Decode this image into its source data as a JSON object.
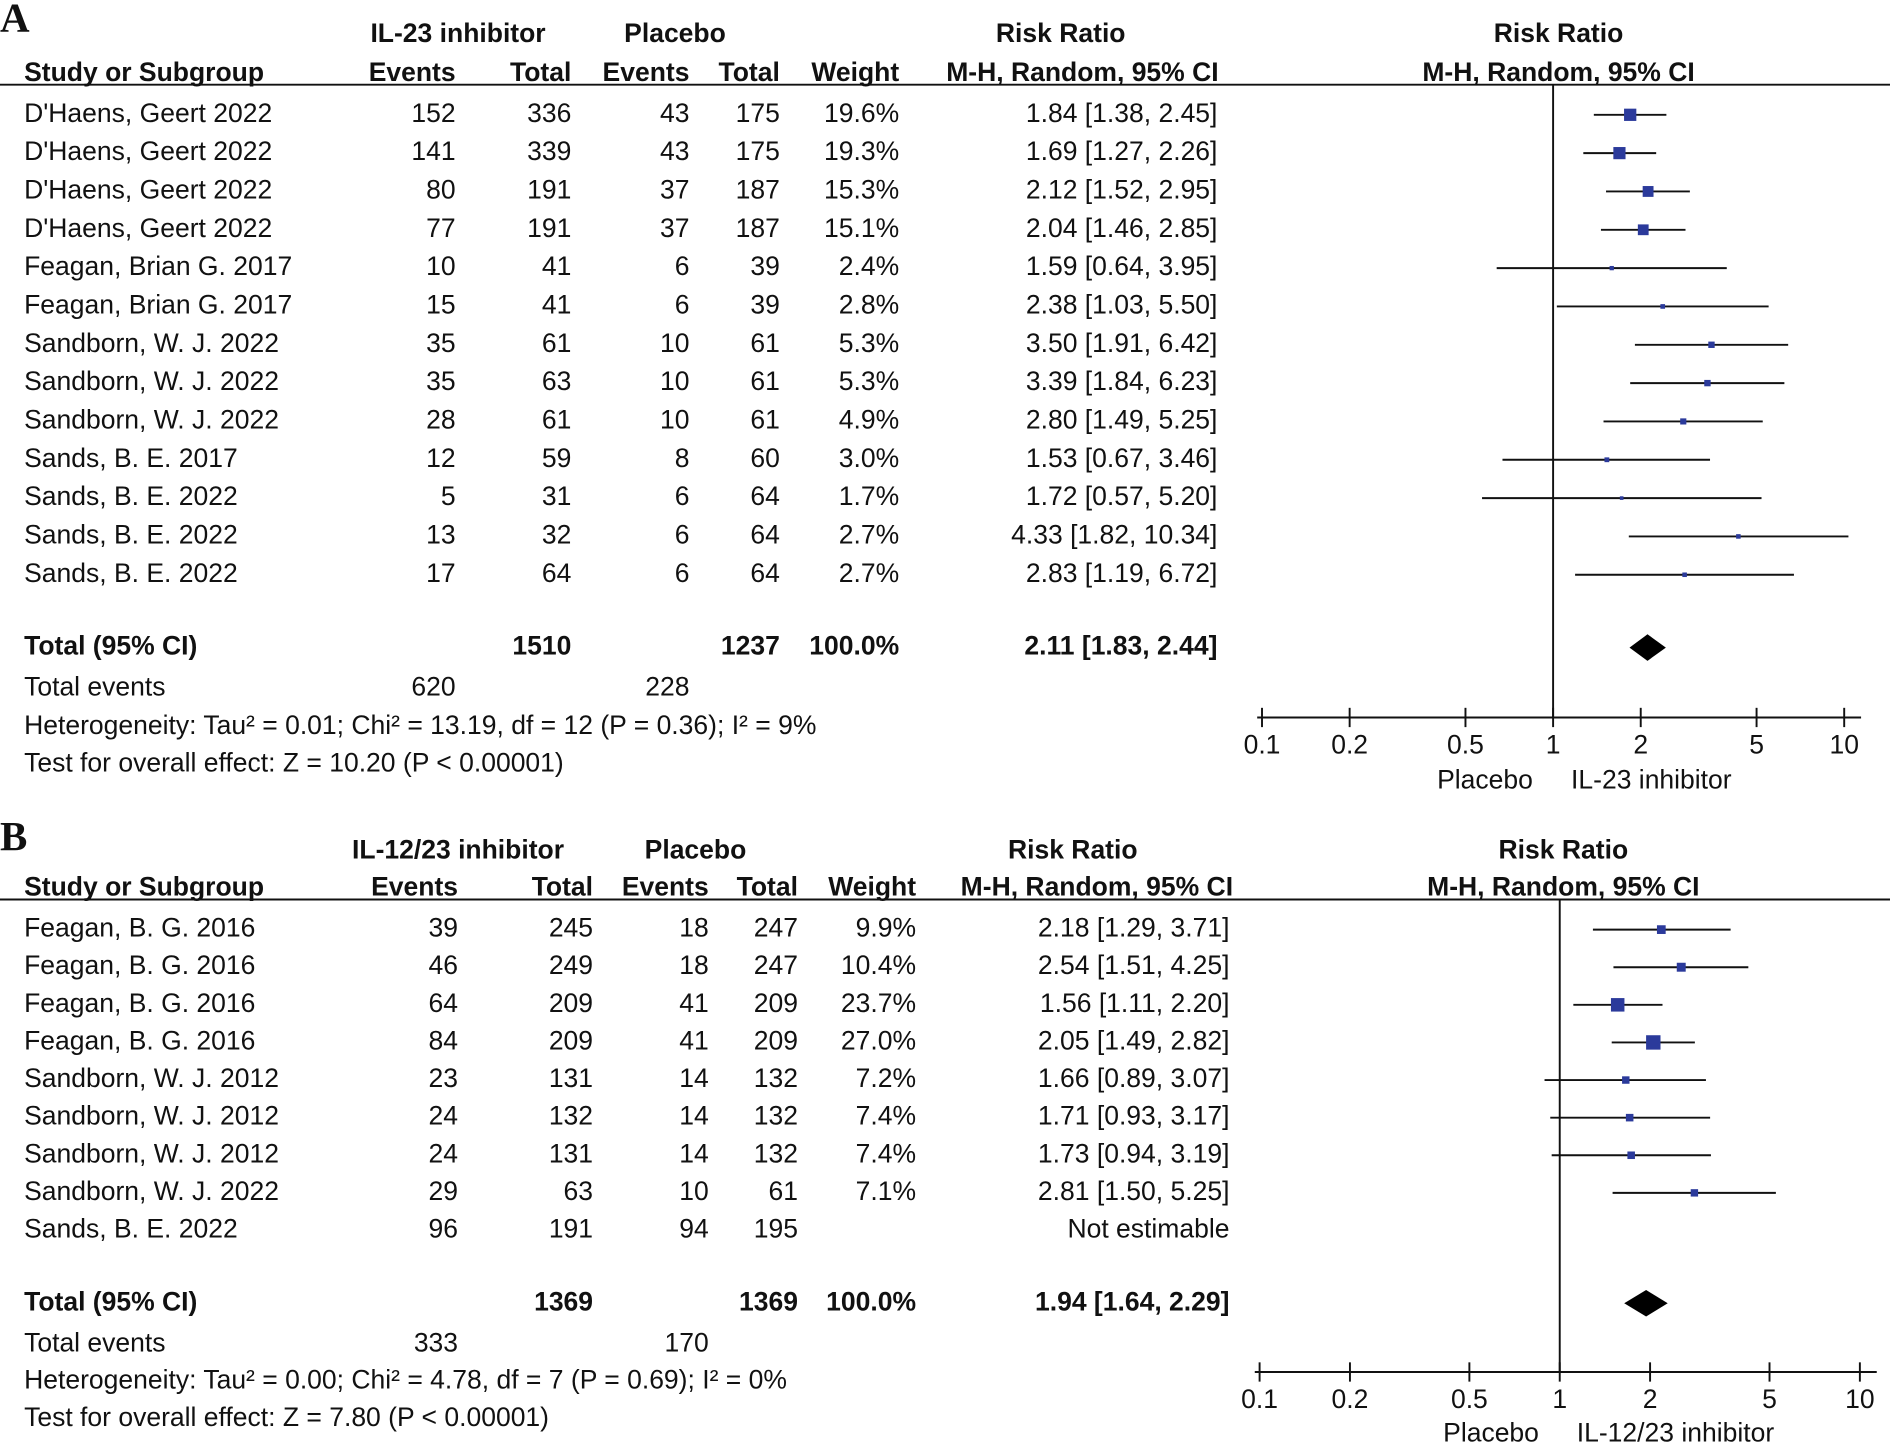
{
  "chart_data": [
    {
      "type": "forest",
      "panel_label": "A",
      "group1": "IL-23 inhibitor",
      "group2": "Placebo",
      "columns": [
        "Study or Subgroup",
        "Events",
        "Total",
        "Events",
        "Total",
        "Weight"
      ],
      "effect_header": "Risk Ratio",
      "effect_subheader": "M-H, Random, 95% CI",
      "plot_header": "Risk Ratio",
      "plot_subheader": "M-H, Random, 95% CI",
      "xscale": "log",
      "xlim": [
        0.1,
        10
      ],
      "xticks": [
        0.1,
        0.2,
        0.5,
        1,
        2,
        5,
        10
      ],
      "x_label_left": "Placebo",
      "x_label_right": "IL-23 inhibitor",
      "color": "#2b3a9b",
      "studies": [
        {
          "name": "D'Haens, Geert 2022",
          "events1": 152,
          "total1": 336,
          "events2": 43,
          "total2": 175,
          "weight": 19.6,
          "weight_label": "19.6%",
          "rr": 1.84,
          "ci_low": 1.38,
          "ci_high": 2.45,
          "rr_label": "1.84 [1.38, 2.45]"
        },
        {
          "name": "D'Haens, Geert 2022",
          "events1": 141,
          "total1": 339,
          "events2": 43,
          "total2": 175,
          "weight": 19.3,
          "weight_label": "19.3%",
          "rr": 1.69,
          "ci_low": 1.27,
          "ci_high": 2.26,
          "rr_label": "1.69 [1.27, 2.26]"
        },
        {
          "name": "D'Haens, Geert 2022",
          "events1": 80,
          "total1": 191,
          "events2": 37,
          "total2": 187,
          "weight": 15.3,
          "weight_label": "15.3%",
          "rr": 2.12,
          "ci_low": 1.52,
          "ci_high": 2.95,
          "rr_label": "2.12 [1.52, 2.95]"
        },
        {
          "name": "D'Haens, Geert 2022",
          "events1": 77,
          "total1": 191,
          "events2": 37,
          "total2": 187,
          "weight": 15.1,
          "weight_label": "15.1%",
          "rr": 2.04,
          "ci_low": 1.46,
          "ci_high": 2.85,
          "rr_label": "2.04 [1.46, 2.85]"
        },
        {
          "name": "Feagan, Brian G. 2017",
          "events1": 10,
          "total1": 41,
          "events2": 6,
          "total2": 39,
          "weight": 2.4,
          "weight_label": "2.4%",
          "rr": 1.59,
          "ci_low": 0.64,
          "ci_high": 3.95,
          "rr_label": "1.59 [0.64, 3.95]"
        },
        {
          "name": "Feagan, Brian G. 2017",
          "events1": 15,
          "total1": 41,
          "events2": 6,
          "total2": 39,
          "weight": 2.8,
          "weight_label": "2.8%",
          "rr": 2.38,
          "ci_low": 1.03,
          "ci_high": 5.5,
          "rr_label": "2.38 [1.03, 5.50]"
        },
        {
          "name": "Sandborn, W. J. 2022",
          "events1": 35,
          "total1": 61,
          "events2": 10,
          "total2": 61,
          "weight": 5.3,
          "weight_label": "5.3%",
          "rr": 3.5,
          "ci_low": 1.91,
          "ci_high": 6.42,
          "rr_label": "3.50 [1.91, 6.42]"
        },
        {
          "name": "Sandborn, W. J. 2022",
          "events1": 35,
          "total1": 63,
          "events2": 10,
          "total2": 61,
          "weight": 5.3,
          "weight_label": "5.3%",
          "rr": 3.39,
          "ci_low": 1.84,
          "ci_high": 6.23,
          "rr_label": "3.39 [1.84, 6.23]"
        },
        {
          "name": "Sandborn, W. J. 2022",
          "events1": 28,
          "total1": 61,
          "events2": 10,
          "total2": 61,
          "weight": 4.9,
          "weight_label": "4.9%",
          "rr": 2.8,
          "ci_low": 1.49,
          "ci_high": 5.25,
          "rr_label": "2.80 [1.49, 5.25]"
        },
        {
          "name": "Sands, B. E. 2017",
          "events1": 12,
          "total1": 59,
          "events2": 8,
          "total2": 60,
          "weight": 3.0,
          "weight_label": "3.0%",
          "rr": 1.53,
          "ci_low": 0.67,
          "ci_high": 3.46,
          "rr_label": "1.53 [0.67, 3.46]"
        },
        {
          "name": "Sands, B. E. 2022",
          "events1": 5,
          "total1": 31,
          "events2": 6,
          "total2": 64,
          "weight": 1.7,
          "weight_label": "1.7%",
          "rr": 1.72,
          "ci_low": 0.57,
          "ci_high": 5.2,
          "rr_label": "1.72 [0.57, 5.20]"
        },
        {
          "name": "Sands, B. E. 2022",
          "events1": 13,
          "total1": 32,
          "events2": 6,
          "total2": 64,
          "weight": 2.7,
          "weight_label": "2.7%",
          "rr": 4.33,
          "ci_low": 1.82,
          "ci_high": 10.34,
          "rr_label": "4.33 [1.82, 10.34]"
        },
        {
          "name": "Sands, B. E. 2022",
          "events1": 17,
          "total1": 64,
          "events2": 6,
          "total2": 64,
          "weight": 2.7,
          "weight_label": "2.7%",
          "rr": 2.83,
          "ci_low": 1.19,
          "ci_high": 6.72,
          "rr_label": "2.83 [1.19, 6.72]"
        }
      ],
      "total": {
        "label": "Total (95% CI)",
        "total1": 1510,
        "total2": 1237,
        "weight": 100,
        "weight_label": "100.0%",
        "rr": 2.11,
        "ci_low": 1.83,
        "ci_high": 2.44,
        "rr_label": "2.11 [1.83, 2.44]"
      },
      "total_events": {
        "label": "Total events",
        "events1": 620,
        "events2": 228
      },
      "heterogeneity": "Heterogeneity: Tau² = 0.01; Chi² = 13.19, df = 12 (P = 0.36); I² = 9%",
      "overall_effect": "Test for overall effect: Z = 10.20 (P < 0.00001)"
    },
    {
      "type": "forest",
      "panel_label": "B",
      "group1": "IL-12/23 inhibitor",
      "group2": "Placebo",
      "columns": [
        "Study or Subgroup",
        "Events",
        "Total",
        "Events",
        "Total",
        "Weight"
      ],
      "effect_header": "Risk Ratio",
      "effect_subheader": "M-H, Random, 95% CI",
      "plot_header": "Risk Ratio",
      "plot_subheader": "M-H, Random, 95% CI",
      "xscale": "log",
      "xlim": [
        0.1,
        10
      ],
      "xticks": [
        0.1,
        0.2,
        0.5,
        1,
        2,
        5,
        10
      ],
      "x_label_left": "Placebo",
      "x_label_right": "IL-12/23 inhibitor",
      "color": "#2b3a9b",
      "studies": [
        {
          "name": "Feagan, B. G. 2016",
          "events1": 39,
          "total1": 245,
          "events2": 18,
          "total2": 247,
          "weight": 9.9,
          "weight_label": "9.9%",
          "rr": 2.18,
          "ci_low": 1.29,
          "ci_high": 3.71,
          "rr_label": "2.18 [1.29, 3.71]"
        },
        {
          "name": "Feagan, B. G. 2016",
          "events1": 46,
          "total1": 249,
          "events2": 18,
          "total2": 247,
          "weight": 10.4,
          "weight_label": "10.4%",
          "rr": 2.54,
          "ci_low": 1.51,
          "ci_high": 4.25,
          "rr_label": "2.54 [1.51, 4.25]"
        },
        {
          "name": "Feagan, B. G. 2016",
          "events1": 64,
          "total1": 209,
          "events2": 41,
          "total2": 209,
          "weight": 23.7,
          "weight_label": "23.7%",
          "rr": 1.56,
          "ci_low": 1.11,
          "ci_high": 2.2,
          "rr_label": "1.56 [1.11, 2.20]"
        },
        {
          "name": "Feagan, B. G. 2016",
          "events1": 84,
          "total1": 209,
          "events2": 41,
          "total2": 209,
          "weight": 27.0,
          "weight_label": "27.0%",
          "rr": 2.05,
          "ci_low": 1.49,
          "ci_high": 2.82,
          "rr_label": "2.05 [1.49, 2.82]"
        },
        {
          "name": "Sandborn, W. J. 2012",
          "events1": 23,
          "total1": 131,
          "events2": 14,
          "total2": 132,
          "weight": 7.2,
          "weight_label": "7.2%",
          "rr": 1.66,
          "ci_low": 0.89,
          "ci_high": 3.07,
          "rr_label": "1.66 [0.89, 3.07]"
        },
        {
          "name": "Sandborn, W. J. 2012",
          "events1": 24,
          "total1": 132,
          "events2": 14,
          "total2": 132,
          "weight": 7.4,
          "weight_label": "7.4%",
          "rr": 1.71,
          "ci_low": 0.93,
          "ci_high": 3.17,
          "rr_label": "1.71 [0.93, 3.17]"
        },
        {
          "name": "Sandborn, W. J. 2012",
          "events1": 24,
          "total1": 131,
          "events2": 14,
          "total2": 132,
          "weight": 7.4,
          "weight_label": "7.4%",
          "rr": 1.73,
          "ci_low": 0.94,
          "ci_high": 3.19,
          "rr_label": "1.73 [0.94, 3.19]"
        },
        {
          "name": "Sandborn, W. J. 2022",
          "events1": 29,
          "total1": 63,
          "events2": 10,
          "total2": 61,
          "weight": 7.1,
          "weight_label": "7.1%",
          "rr": 2.81,
          "ci_low": 1.5,
          "ci_high": 5.25,
          "rr_label": "2.81 [1.50, 5.25]"
        },
        {
          "name": "Sands, B. E. 2022",
          "events1": 96,
          "total1": 191,
          "events2": 94,
          "total2": 195,
          "weight": null,
          "weight_label": null,
          "rr": null,
          "ci_low": null,
          "ci_high": null,
          "rr_label": "Not estimable"
        }
      ],
      "total": {
        "label": "Total (95% CI)",
        "total1": 1369,
        "total2": 1369,
        "weight": 100,
        "weight_label": "100.0%",
        "rr": 1.94,
        "ci_low": 1.64,
        "ci_high": 2.29,
        "rr_label": "1.94 [1.64, 2.29]"
      },
      "total_events": {
        "label": "Total events",
        "events1": 333,
        "events2": 170
      },
      "heterogeneity": "Heterogeneity: Tau² = 0.00; Chi² = 4.78, df = 7 (P = 0.69); I² = 0%",
      "overall_effect": "Test for overall effect: Z = 7.80 (P < 0.00001)"
    }
  ]
}
